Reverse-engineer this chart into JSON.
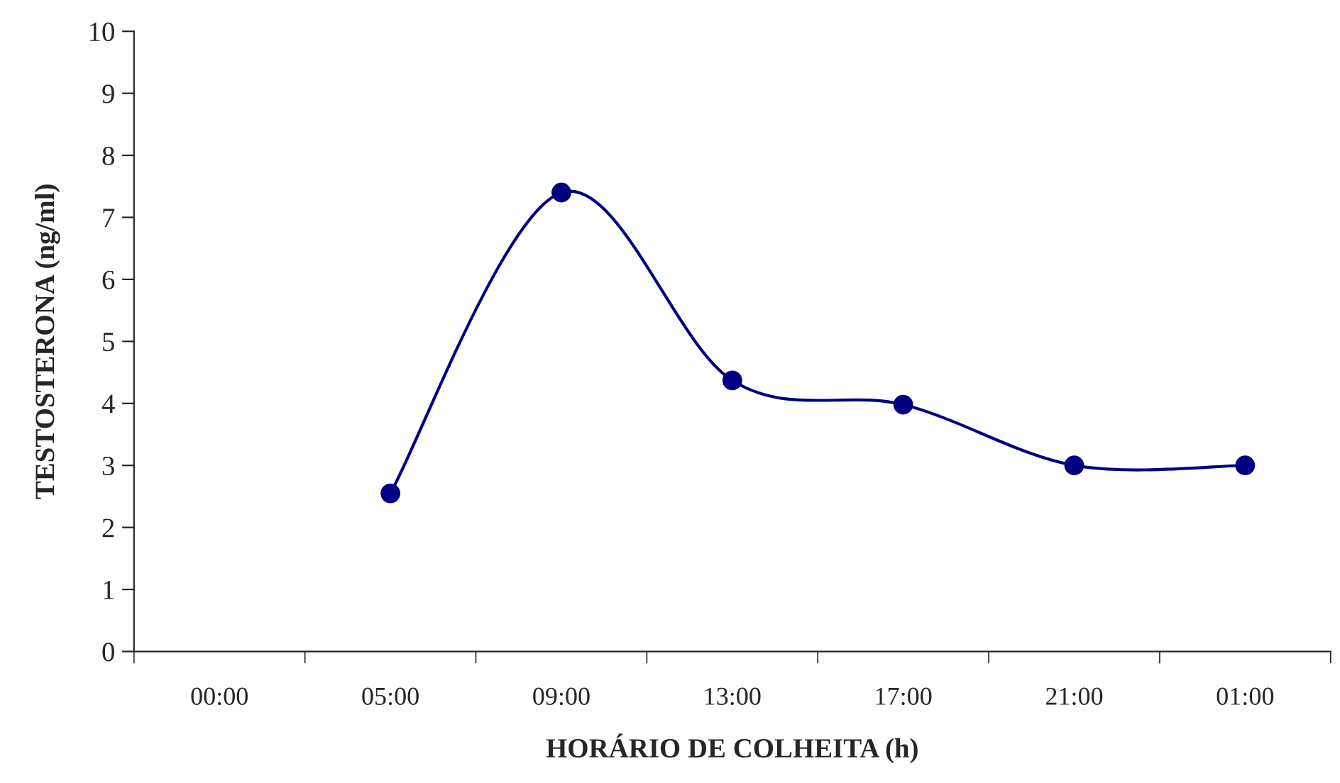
{
  "chart_data": {
    "type": "line",
    "xlabel": "HORÁRIO DE COLHEITA (h)",
    "ylabel": "TESTOSTERONA (ng/ml)",
    "categories": [
      "00:00",
      "05:00",
      "09:00",
      "13:00",
      "17:00",
      "21:00",
      "01:00"
    ],
    "series": [
      {
        "color": "#000080",
        "values": [
          null,
          2.55,
          7.4,
          4.37,
          3.98,
          3.0,
          3.0
        ]
      }
    ],
    "ylim": [
      0,
      10
    ],
    "yticks": [
      0,
      1,
      2,
      3,
      4,
      5,
      6,
      7,
      8,
      9,
      10
    ],
    "marker": "circle",
    "line_style": "solid",
    "grid": false,
    "legend": false
  }
}
